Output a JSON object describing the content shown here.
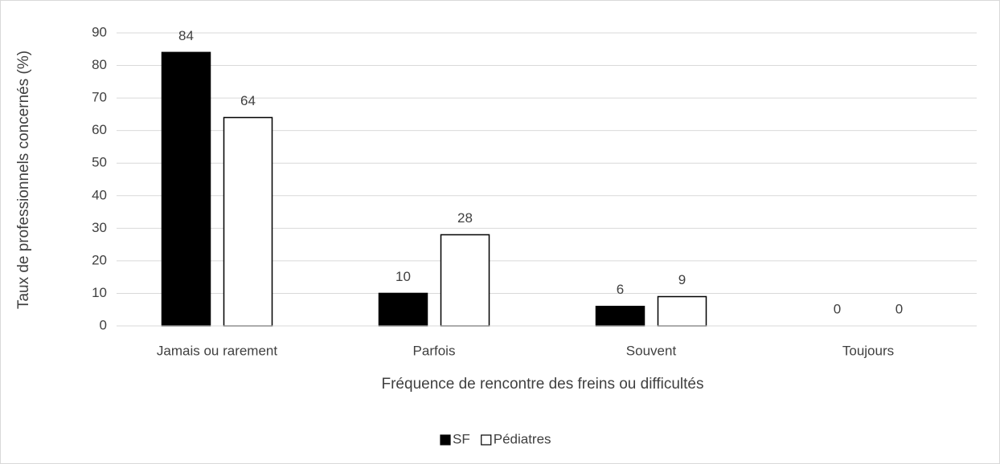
{
  "chart_data": {
    "type": "bar",
    "categories": [
      "Jamais ou rarement",
      "Parfois",
      "Souvent",
      "Toujours"
    ],
    "series": [
      {
        "name": "SF",
        "color": "#000000",
        "values": [
          84,
          10,
          6,
          0
        ]
      },
      {
        "name": "Pédiatres",
        "color": "#ffffff",
        "values": [
          64,
          28,
          9,
          0
        ]
      }
    ],
    "x_label": "Fréquence de rencontre des freins ou difficultés",
    "y_label": "Taux de professionnels concernés (%)",
    "ylim": [
      0,
      90
    ],
    "yticks": [
      0,
      10,
      20,
      30,
      40,
      50,
      60,
      70,
      80,
      90
    ],
    "grid": true,
    "legend": "bottom"
  }
}
